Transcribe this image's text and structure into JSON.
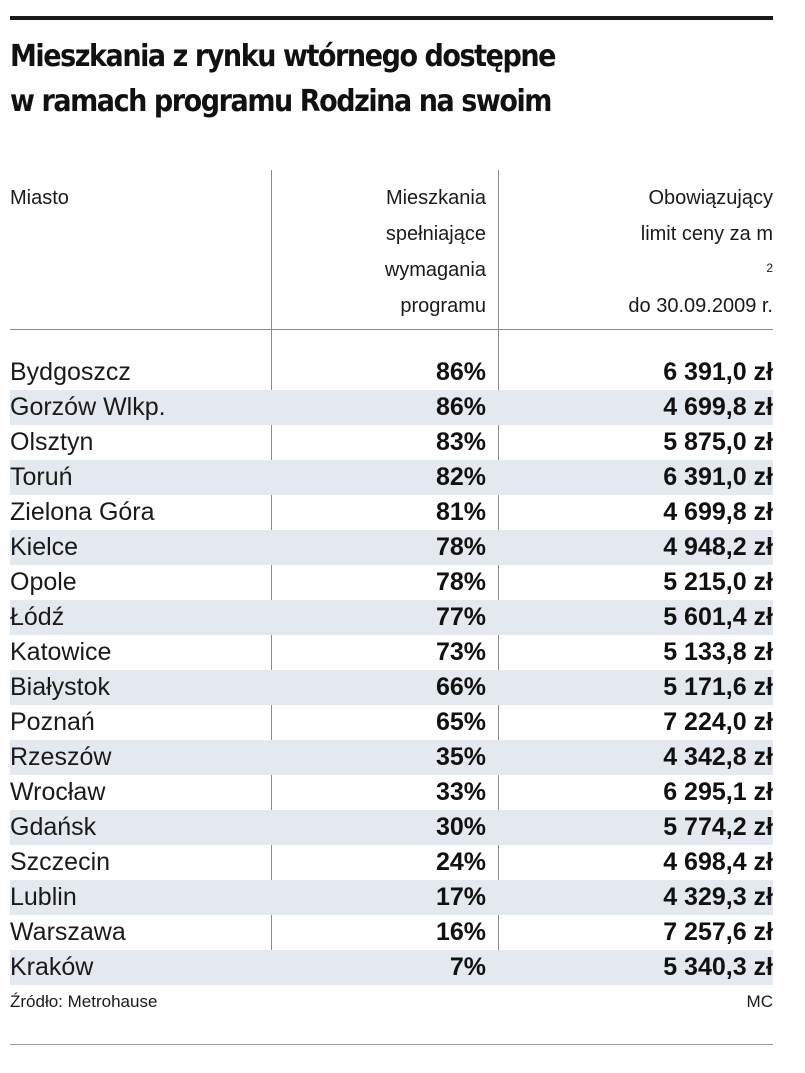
{
  "title": {
    "line1": "Mieszkania z rynku wtórnego dostępne",
    "line2": "w ramach programu Rodzina na swoim"
  },
  "columns": {
    "city": "Miasto",
    "pct": [
      "Mieszkania",
      "spełniające",
      "wymagania",
      "programu"
    ],
    "price_lines": [
      "Obowiązujący",
      "do 30.09.2009 r."
    ],
    "price_line2_text": "limit ceny za m",
    "price_line2_sup": "2"
  },
  "rows": [
    {
      "city": "Bydgoszcz",
      "pct": "86%",
      "price": "6 391,0 zł"
    },
    {
      "city": "Gorzów Wlkp.",
      "pct": "86%",
      "price": "4 699,8 zł"
    },
    {
      "city": "Olsztyn",
      "pct": "83%",
      "price": "5 875,0 zł"
    },
    {
      "city": "Toruń",
      "pct": "82%",
      "price": "6 391,0 zł"
    },
    {
      "city": "Zielona Góra",
      "pct": "81%",
      "price": "4 699,8 zł"
    },
    {
      "city": "Kielce",
      "pct": "78%",
      "price": "4 948,2 zł"
    },
    {
      "city": "Opole",
      "pct": "78%",
      "price": "5 215,0 zł"
    },
    {
      "city": "Łódź",
      "pct": "77%",
      "price": "5 601,4 zł"
    },
    {
      "city": "Katowice",
      "pct": "73%",
      "price": "5 133,8 zł"
    },
    {
      "city": "Białystok",
      "pct": "66%",
      "price": "5 171,6 zł"
    },
    {
      "city": "Poznań",
      "pct": "65%",
      "price": "7 224,0 zł"
    },
    {
      "city": "Rzeszów",
      "pct": "35%",
      "price": "4 342,8 zł"
    },
    {
      "city": "Wrocław",
      "pct": "33%",
      "price": "6 295,1 zł"
    },
    {
      "city": "Gdańsk",
      "pct": "30%",
      "price": "5 774,2 zł"
    },
    {
      "city": "Szczecin",
      "pct": "24%",
      "price": "4 698,4 zł"
    },
    {
      "city": "Lublin",
      "pct": "17%",
      "price": "4 329,3 zł"
    },
    {
      "city": "Warszawa",
      "pct": "16%",
      "price": "7 257,6 zł"
    },
    {
      "city": "Kraków",
      "pct": "7%",
      "price": "5 340,3 zł"
    }
  ],
  "footer": {
    "source": "Źródło: Metrohause",
    "credit": "MC"
  },
  "colors": {
    "stripe": "#e4e9ef",
    "text": "#111111",
    "rule": "#1a1a1a"
  }
}
